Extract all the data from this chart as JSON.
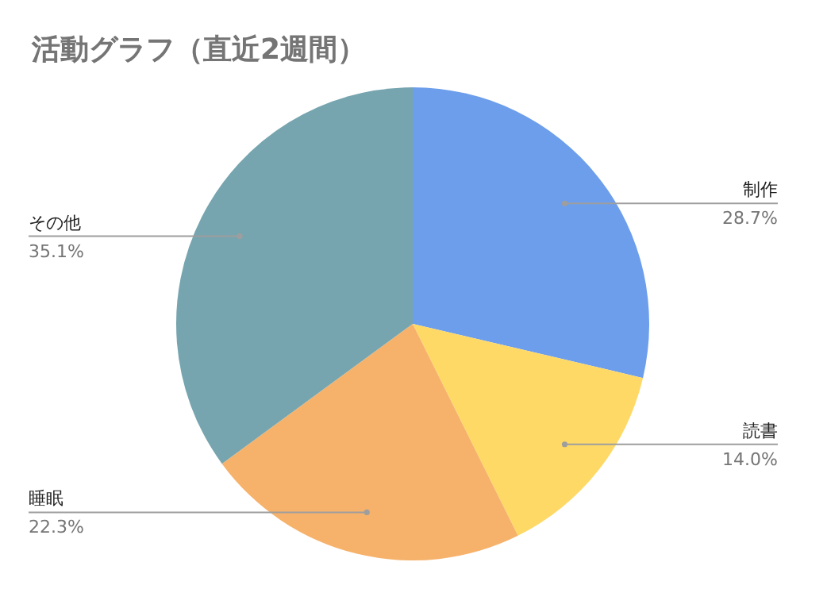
{
  "chart_data": {
    "type": "pie",
    "title": "活動グラフ（直近2週間）",
    "categories": [
      "制作",
      "読書",
      "睡眠",
      "その他"
    ],
    "values": [
      28.7,
      14.0,
      22.3,
      35.1
    ],
    "colors": [
      "#6d9eeb",
      "#ffd966",
      "#f6b26b",
      "#76a5af"
    ],
    "value_labels": [
      "28.7%",
      "14.0%",
      "22.3%",
      "35.1%"
    ]
  }
}
